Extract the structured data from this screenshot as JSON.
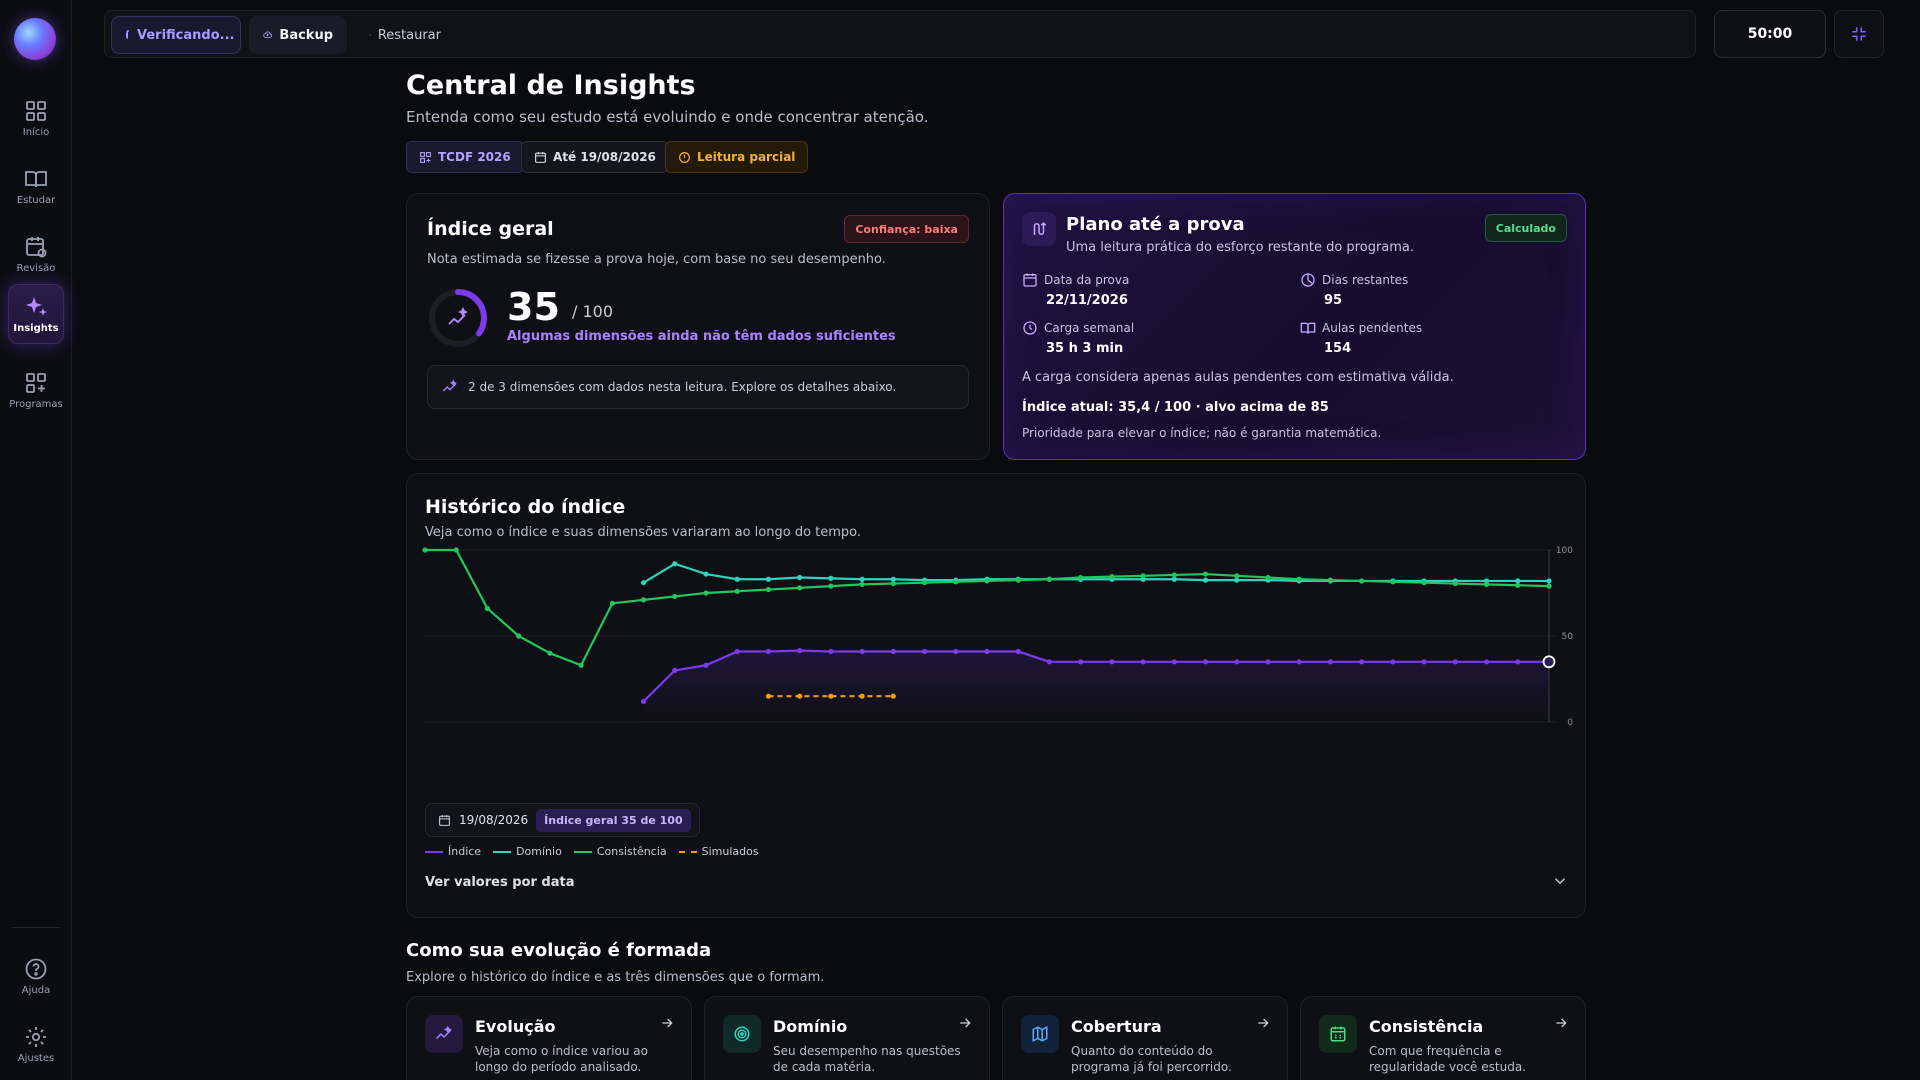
{
  "sidebar": {
    "items": [
      {
        "label": "Início",
        "icon": "grid-icon"
      },
      {
        "label": "Estudar",
        "icon": "book-icon"
      },
      {
        "label": "Revisão",
        "icon": "calendar-refresh-icon"
      },
      {
        "label": "Insights",
        "icon": "sparkles-icon",
        "active": true
      },
      {
        "label": "Programas",
        "icon": "grid-plus-icon"
      }
    ],
    "bottom": [
      {
        "label": "Ajuda",
        "icon": "help-icon"
      },
      {
        "label": "Ajustes",
        "icon": "gear-icon"
      }
    ]
  },
  "topbar": {
    "verifying_label": "Verificando...",
    "backup_label": "Backup",
    "restore_label": "Restaurar",
    "timer": "50:00"
  },
  "header": {
    "title": "Central de Insights",
    "subtitle": "Entenda como seu estudo está evoluindo e onde concentrar atenção.",
    "chips": {
      "program": "TCDF 2026",
      "until": "Até 19/08/2026",
      "reading": "Leitura parcial"
    }
  },
  "indice": {
    "title": "Índice geral",
    "confidence": "Confiança: baixa",
    "subtitle": "Nota estimada se fizesse a prova hoje, com base no seu desempenho.",
    "score": "35",
    "score_max": "/ 100",
    "score_value": 35,
    "note": "Algumas dimensões ainda não têm dados suficientes",
    "info": "2 de 3 dimensões com dados nesta leitura. Explore os detalhes abaixo."
  },
  "plano": {
    "title": "Plano até a prova",
    "subtitle": "Uma leitura prática do esforço restante do programa.",
    "status": "Calculado",
    "stats": {
      "exam_date_label": "Data da prova",
      "exam_date": "22/11/2026",
      "days_label": "Dias restantes",
      "days": "95",
      "load_label": "Carga semanal",
      "load": "35 h 3 min",
      "pending_label": "Aulas pendentes",
      "pending": "154"
    },
    "note": "A carga considera apenas aulas pendentes com estimativa válida.",
    "current": "Índice atual: 35,4 / 100 · alvo acima de 85",
    "priority": "Prioridade para elevar o índice; não é garantia matemática."
  },
  "historico": {
    "title": "Histórico do índice",
    "subtitle": "Veja como o índice e suas dimensões variaram ao longo do tempo.",
    "tooltip_date": "19/08/2026",
    "tooltip_value": "Índice geral 35 de 100",
    "more": "Ver valores por data"
  },
  "chart_data": {
    "type": "line",
    "ylim": [
      0,
      100
    ],
    "yticks": [
      "100",
      "50",
      "0"
    ],
    "grid": true,
    "legend_placement": "bottom-left",
    "n_points": 37,
    "series": [
      {
        "name": "Índice",
        "color": "#7c3aed",
        "dashed": false,
        "values": [
          null,
          null,
          null,
          null,
          null,
          null,
          null,
          12,
          30,
          33,
          41,
          41,
          41.5,
          41,
          41,
          41,
          41,
          41,
          41,
          41,
          35,
          35,
          35,
          35,
          35,
          35,
          35,
          35,
          35,
          35,
          35,
          35,
          35,
          35,
          35,
          35,
          35
        ]
      },
      {
        "name": "Domínio",
        "color": "#2dd4bf",
        "dashed": false,
        "values": [
          null,
          null,
          null,
          null,
          null,
          null,
          null,
          81,
          92,
          86,
          83,
          83,
          84,
          83.5,
          83,
          83,
          82.5,
          82.5,
          83,
          83,
          83,
          83,
          83,
          83,
          83,
          82.5,
          82.5,
          82.5,
          82,
          82,
          82,
          82,
          82,
          82,
          82,
          82,
          82
        ]
      },
      {
        "name": "Consistência",
        "color": "#22c55e",
        "dashed": false,
        "values": [
          100,
          100,
          66,
          50,
          40,
          33,
          69,
          71,
          73,
          75,
          76,
          77,
          78,
          79,
          80,
          80.5,
          81,
          81.5,
          82,
          82.5,
          83,
          84,
          84.5,
          85,
          85.5,
          86,
          85,
          84,
          83,
          82.5,
          82,
          81.5,
          81,
          80.5,
          80,
          79.5,
          79
        ]
      },
      {
        "name": "Simulados",
        "color": "#f59e0b",
        "dashed": true,
        "values": [
          null,
          null,
          null,
          null,
          null,
          null,
          null,
          null,
          null,
          null,
          null,
          15,
          15,
          15,
          15,
          15,
          null,
          null,
          null,
          null,
          null,
          null,
          null,
          null,
          null,
          null,
          null,
          null,
          null,
          null,
          null,
          null,
          null,
          null,
          null,
          null,
          null
        ]
      }
    ]
  },
  "evolucao": {
    "title": "Como sua evolução é formada",
    "subtitle": "Explore o histórico do índice e as três dimensões que o formam.",
    "cards": [
      {
        "title": "Evolução",
        "desc": "Veja como o índice variou ao longo do período analisado.",
        "icon": "trend-sparkle-icon",
        "color": "#a882ff",
        "bg": "#231a3e"
      },
      {
        "title": "Domínio",
        "desc": "Seu desempenho nas questões de cada matéria.",
        "icon": "target-icon",
        "color": "#2dd4bf",
        "bg": "#0f2a28"
      },
      {
        "title": "Cobertura",
        "desc": "Quanto do conteúdo do programa já foi percorrido.",
        "icon": "map-icon",
        "color": "#60a5fa",
        "bg": "#122238"
      },
      {
        "title": "Consistência",
        "desc": "Com que frequência e regularidade você estuda.",
        "icon": "calendar-check-icon",
        "color": "#4ade80",
        "bg": "#112a1c"
      }
    ]
  }
}
